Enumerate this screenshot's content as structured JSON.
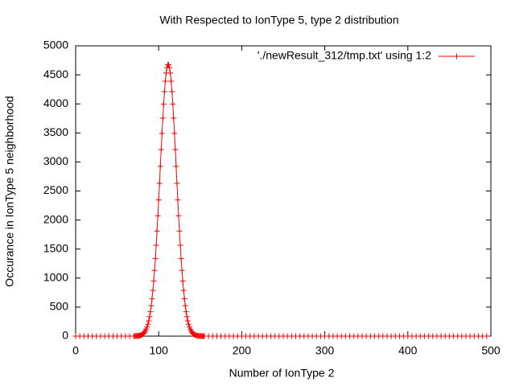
{
  "chart_data": {
    "type": "line",
    "title": "With Respected to IonType 5, type 2 distribution",
    "xlabel": "Number of IonType 2",
    "ylabel": "Occurance in IonType 5 neighborhood",
    "x": [
      0,
      5,
      10,
      15,
      20,
      25,
      30,
      35,
      40,
      45,
      50,
      55,
      60,
      65,
      70,
      71,
      72,
      73,
      74,
      75,
      76,
      77,
      78,
      79,
      80,
      81,
      82,
      83,
      84,
      85,
      86,
      87,
      88,
      89,
      90,
      91,
      92,
      93,
      94,
      95,
      96,
      97,
      98,
      99,
      100,
      101,
      102,
      103,
      104,
      105,
      106,
      107,
      108,
      109,
      110,
      111,
      112,
      113,
      114,
      115,
      116,
      117,
      118,
      119,
      120,
      121,
      122,
      123,
      124,
      125,
      126,
      127,
      128,
      129,
      130,
      131,
      132,
      133,
      134,
      135,
      136,
      137,
      138,
      139,
      140,
      141,
      142,
      143,
      144,
      145,
      146,
      147,
      148,
      149,
      150,
      151,
      152,
      153,
      154,
      155,
      160,
      165,
      170,
      175,
      180,
      185,
      190,
      195,
      200,
      205,
      210,
      215,
      220,
      225,
      230,
      235,
      240,
      245,
      250,
      255,
      260,
      265,
      270,
      275,
      280,
      285,
      290,
      295,
      300,
      305,
      310,
      315,
      320,
      325,
      330,
      335,
      340,
      345,
      350,
      355,
      360,
      365,
      370,
      375,
      380,
      385,
      390,
      395,
      400,
      405,
      410,
      415,
      420,
      425,
      430,
      435,
      440,
      445,
      450,
      455,
      460,
      465,
      470,
      475,
      480,
      485,
      490,
      495
    ],
    "series": [
      {
        "name": "'./newResult_312/tmp.txt' using 1:2",
        "color": "#ff0000",
        "values": [
          0,
          0,
          0,
          0,
          0,
          0,
          0,
          0,
          0,
          0,
          0,
          0,
          0,
          0,
          0,
          1,
          1,
          2,
          3,
          5,
          7,
          9,
          13,
          19,
          27,
          37,
          50,
          68,
          91,
          121,
          159,
          205,
          264,
          336,
          421,
          525,
          646,
          787,
          948,
          1132,
          1337,
          1565,
          1810,
          2073,
          2346,
          2632,
          2925,
          3213,
          3492,
          3756,
          3998,
          4212,
          4391,
          4530,
          4625,
          4674,
          4674,
          4625,
          4530,
          4391,
          4212,
          3998,
          3756,
          3492,
          3213,
          2925,
          2632,
          2346,
          2073,
          1810,
          1565,
          1337,
          1132,
          948,
          787,
          646,
          525,
          421,
          336,
          264,
          205,
          159,
          121,
          91,
          68,
          50,
          37,
          27,
          19,
          13,
          9,
          7,
          5,
          3,
          2,
          1,
          1,
          1,
          0,
          0,
          0,
          0,
          0,
          0,
          0,
          0,
          0,
          0,
          0,
          0,
          0,
          0,
          0,
          0,
          0,
          0,
          0,
          0,
          0,
          0,
          0,
          0,
          0,
          0,
          0,
          0,
          0,
          0,
          0,
          0,
          0,
          0,
          0,
          0,
          0,
          0,
          0,
          0,
          0,
          0,
          0,
          0,
          0,
          0,
          0,
          0,
          0,
          0,
          0,
          0,
          0,
          0,
          0,
          0,
          0,
          0,
          0,
          0,
          0,
          0,
          0,
          0,
          0,
          0,
          0,
          0,
          0,
          0
        ]
      }
    ],
    "xlim": [
      0,
      500
    ],
    "ylim": [
      0,
      5000
    ],
    "xticks": [
      0,
      100,
      200,
      300,
      400,
      500
    ],
    "yticks": [
      0,
      500,
      1000,
      1500,
      2000,
      2500,
      3000,
      3500,
      4000,
      4500,
      5000
    ],
    "legend": "top-right"
  }
}
